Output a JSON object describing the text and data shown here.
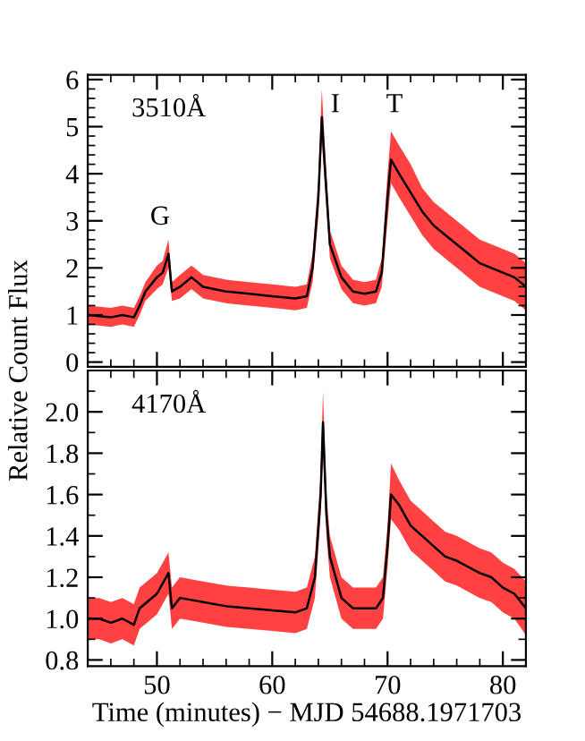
{
  "chart_data": [
    {
      "type": "line",
      "ylabel": "Relative Count Flux",
      "annotations": [
        "3510Å",
        "G",
        "I",
        "T"
      ],
      "xlim": [
        44,
        82
      ],
      "xticks": [
        50,
        60,
        70,
        80
      ],
      "ylim": [
        -0.1,
        6.1
      ],
      "yticks": [
        0,
        1,
        2,
        3,
        4,
        5,
        6
      ],
      "tick_labels": "y",
      "grid": false,
      "legend": false,
      "series": [
        {
          "color": "#000000",
          "x": [
            44,
            46,
            47,
            48,
            48.5,
            49,
            50,
            50.5,
            51,
            51.3,
            52,
            53,
            54,
            56,
            58,
            60,
            62,
            63,
            63.5,
            64,
            64.3,
            64.6,
            65,
            66,
            67,
            68,
            69,
            69.5,
            70,
            70.3,
            71,
            72,
            73,
            74,
            75,
            76,
            77,
            78,
            79,
            80,
            81,
            82
          ],
          "values": [
            1.0,
            0.95,
            1.0,
            0.95,
            1.2,
            1.5,
            1.8,
            1.9,
            2.3,
            1.5,
            1.6,
            1.8,
            1.6,
            1.5,
            1.45,
            1.4,
            1.35,
            1.4,
            2.0,
            3.5,
            5.2,
            4.0,
            2.5,
            1.8,
            1.5,
            1.45,
            1.5,
            1.9,
            3.5,
            4.3,
            4.0,
            3.6,
            3.2,
            2.9,
            2.7,
            2.5,
            2.3,
            2.1,
            2.0,
            1.9,
            1.8,
            1.6
          ],
          "lower": [
            0.8,
            0.75,
            0.8,
            0.75,
            1.0,
            1.3,
            1.55,
            1.65,
            2.0,
            1.3,
            1.35,
            1.55,
            1.35,
            1.25,
            1.2,
            1.15,
            1.1,
            1.15,
            1.7,
            3.1,
            4.7,
            3.6,
            2.2,
            1.55,
            1.25,
            1.2,
            1.25,
            1.6,
            3.0,
            3.8,
            3.5,
            3.1,
            2.7,
            2.4,
            2.2,
            2.0,
            1.8,
            1.6,
            1.5,
            1.4,
            1.3,
            1.1
          ],
          "upper": [
            1.2,
            1.15,
            1.2,
            1.15,
            1.4,
            1.7,
            2.05,
            2.15,
            2.6,
            1.7,
            1.85,
            2.05,
            1.85,
            1.75,
            1.7,
            1.65,
            1.6,
            1.65,
            2.3,
            3.9,
            5.8,
            4.4,
            2.8,
            2.05,
            1.75,
            1.7,
            1.75,
            2.2,
            4.0,
            4.9,
            4.6,
            4.2,
            3.7,
            3.4,
            3.2,
            3.0,
            2.8,
            2.6,
            2.5,
            2.4,
            2.3,
            2.1
          ]
        }
      ]
    },
    {
      "type": "line",
      "xlabel": "Time (minutes) − MJD 54688.1971703",
      "annotations": [
        "4170Å"
      ],
      "xlim": [
        44,
        82
      ],
      "xticks": [
        50,
        60,
        70,
        80
      ],
      "ylim": [
        0.77,
        2.2
      ],
      "yticks": [
        {
          "value": 0.8,
          "label": "0.8"
        },
        {
          "value": 1.0,
          "label": "1.0"
        },
        {
          "value": 1.2,
          "label": "1.2"
        },
        {
          "value": 1.4,
          "label": "1.4"
        },
        {
          "value": 1.6,
          "label": "1.6"
        },
        {
          "value": 1.8,
          "label": "1.8"
        },
        {
          "value": 2.0,
          "label": "2.0"
        }
      ],
      "grid": false,
      "legend": false,
      "series": [
        {
          "color": "#000000",
          "x": [
            44,
            45,
            46,
            47,
            48,
            48.5,
            50,
            51,
            51.3,
            52,
            54,
            56,
            58,
            60,
            62,
            63,
            63.7,
            64.2,
            64.4,
            64.7,
            65,
            66,
            67,
            68,
            69,
            69.6,
            70,
            70.3,
            71,
            72,
            73,
            74,
            75,
            76,
            77,
            78,
            79,
            80,
            81,
            82
          ],
          "values": [
            1.0,
            1.0,
            0.98,
            1.0,
            0.97,
            1.05,
            1.12,
            1.22,
            1.05,
            1.1,
            1.08,
            1.06,
            1.05,
            1.04,
            1.03,
            1.05,
            1.2,
            1.6,
            1.95,
            1.5,
            1.3,
            1.1,
            1.05,
            1.05,
            1.05,
            1.1,
            1.35,
            1.6,
            1.55,
            1.45,
            1.4,
            1.35,
            1.3,
            1.28,
            1.25,
            1.22,
            1.2,
            1.15,
            1.12,
            1.05
          ],
          "lower": [
            0.9,
            0.9,
            0.88,
            0.9,
            0.87,
            0.95,
            1.02,
            1.12,
            0.95,
            1.0,
            0.98,
            0.96,
            0.95,
            0.94,
            0.93,
            0.95,
            1.1,
            1.5,
            1.8,
            1.4,
            1.2,
            1.0,
            0.95,
            0.95,
            0.95,
            1.0,
            1.25,
            1.48,
            1.43,
            1.33,
            1.28,
            1.23,
            1.18,
            1.16,
            1.13,
            1.1,
            1.08,
            1.03,
            1.0,
            0.92
          ],
          "upper": [
            1.1,
            1.1,
            1.08,
            1.1,
            1.07,
            1.15,
            1.22,
            1.32,
            1.15,
            1.2,
            1.18,
            1.16,
            1.15,
            1.14,
            1.13,
            1.15,
            1.3,
            1.7,
            2.1,
            1.6,
            1.4,
            1.2,
            1.15,
            1.15,
            1.15,
            1.2,
            1.45,
            1.75,
            1.67,
            1.57,
            1.52,
            1.47,
            1.42,
            1.4,
            1.37,
            1.34,
            1.32,
            1.27,
            1.24,
            1.18
          ]
        }
      ]
    }
  ]
}
